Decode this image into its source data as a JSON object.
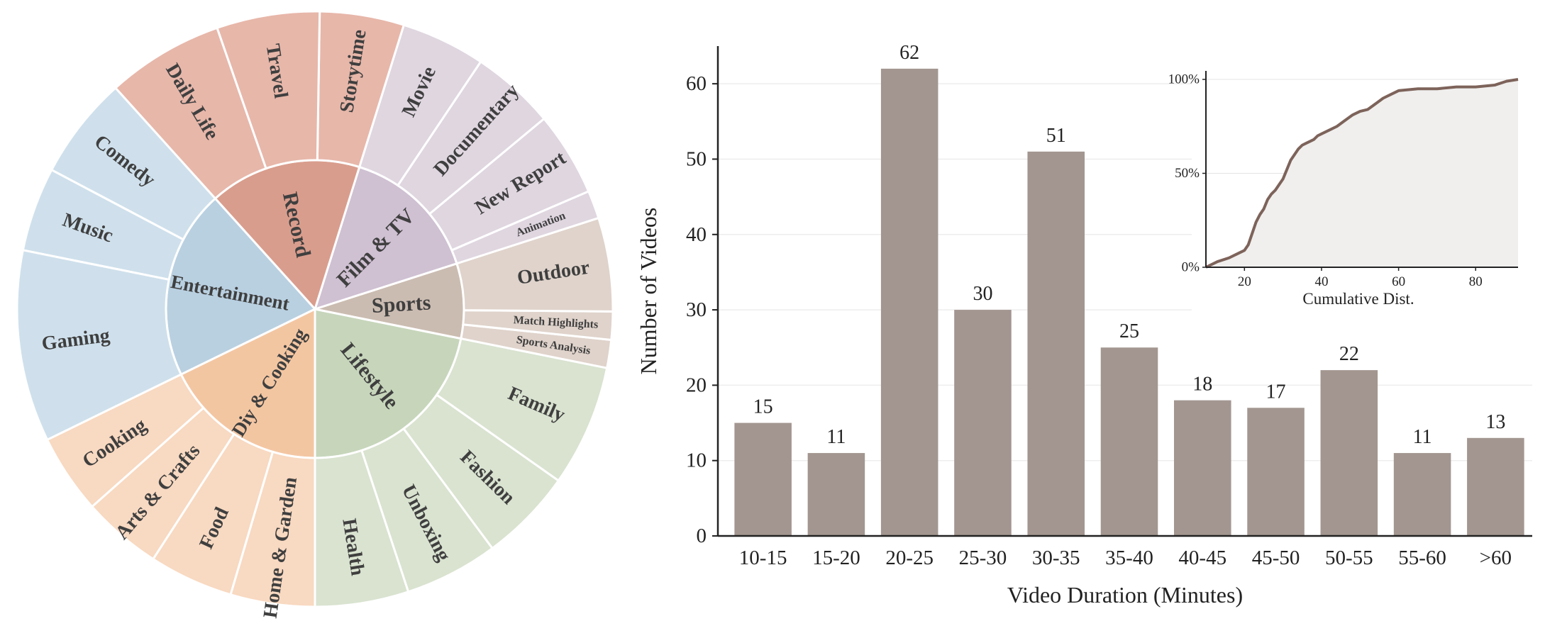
{
  "chart_data": [
    {
      "type": "sunburst",
      "inner": [
        {
          "label": "Lifestyle",
          "color": "#c7d6bb",
          "children": [
            {
              "label": "Health",
              "value": 1,
              "color": "#d9e3d0"
            },
            {
              "label": "Unboxing",
              "value": 1,
              "color": "#d9e3d0"
            },
            {
              "label": "Fashion",
              "value": 1,
              "color": "#d9e3d0"
            },
            {
              "label": "Family",
              "value": 1.3,
              "color": "#d9e3d0"
            }
          ]
        },
        {
          "label": "Sports",
          "color": "#cbbcb1",
          "children": [
            {
              "label": "Sports Analysis",
              "value": 0.3,
              "color": "#dfd3cb"
            },
            {
              "label": "Match Highlights",
              "value": 0.3,
              "color": "#dfd3cb"
            },
            {
              "label": "Outdoor",
              "value": 1,
              "color": "#dfd3cb"
            }
          ]
        },
        {
          "label": "Film & TV",
          "color": "#cfc0d2",
          "children": [
            {
              "label": "Animation",
              "value": 0.3,
              "color": "#dfd6e0"
            },
            {
              "label": "New Report",
              "value": 0.9,
              "color": "#dfd6e0"
            },
            {
              "label": "Documentary",
              "value": 0.9,
              "color": "#dfd6e0"
            },
            {
              "label": "Movie",
              "value": 0.9,
              "color": "#dfd6e0"
            }
          ]
        },
        {
          "label": "Record",
          "color": "#d99d8d",
          "children": [
            {
              "label": "Storytime",
              "value": 0.9,
              "color": "#e7b7aa"
            },
            {
              "label": "Travel",
              "value": 1.1,
              "color": "#e7b7aa"
            },
            {
              "label": "Daily Life",
              "value": 1.25,
              "color": "#e7b7aa"
            }
          ]
        },
        {
          "label": "Entertainment",
          "color": "#b9d0e1",
          "children": [
            {
              "label": "Comedy",
              "value": 1.1,
              "color": "#cfe0ec"
            },
            {
              "label": "Music",
              "value": 0.9,
              "color": "#cfe0ec"
            },
            {
              "label": "Gaming",
              "value": 2.05,
              "color": "#cfe0ec"
            }
          ]
        },
        {
          "label": "Diy & Cooking",
          "color": "#f3c6a2",
          "children": [
            {
              "label": "Cooking",
              "value": 0.85,
              "color": "#f8d9c1"
            },
            {
              "label": "Arts & Crafts",
              "value": 0.85,
              "color": "#f8d9c1"
            },
            {
              "label": "Food",
              "value": 0.9,
              "color": "#f8d9c1"
            },
            {
              "label": "Home & Garden",
              "value": 0.9,
              "color": "#f8d9c1"
            }
          ]
        }
      ]
    },
    {
      "type": "bar",
      "categories": [
        "10-15",
        "15-20",
        "20-25",
        "25-30",
        "30-35",
        "35-40",
        "40-45",
        "45-50",
        "50-55",
        "55-60",
        ">60"
      ],
      "values": [
        15,
        11,
        62,
        30,
        51,
        25,
        18,
        17,
        22,
        11,
        13
      ],
      "xlabel": "Video Duration (Minutes)",
      "ylabel": "Number of Videos",
      "ylim": [
        0,
        65
      ],
      "yticks": [
        0,
        10,
        20,
        30,
        40,
        50,
        60
      ],
      "bar_color": "#a39690",
      "grid": true
    },
    {
      "type": "area",
      "title": "Cumulative Dist.",
      "x": [
        10,
        13,
        16,
        18,
        20,
        21,
        22,
        23,
        24,
        25,
        26,
        27,
        28,
        29,
        30,
        31,
        32,
        33,
        34,
        35,
        36,
        37,
        38,
        39,
        40,
        42,
        44,
        46,
        48,
        50,
        52,
        54,
        56,
        58,
        60,
        65,
        70,
        75,
        80,
        85,
        88,
        91
      ],
      "y": [
        0,
        3,
        5,
        7,
        9,
        12,
        18,
        24,
        28,
        31,
        36,
        39,
        41,
        44,
        47,
        52,
        57,
        60,
        63,
        65,
        66,
        67,
        68,
        70,
        71,
        73,
        75,
        78,
        81,
        83,
        84,
        87,
        90,
        92,
        94,
        95,
        95,
        96,
        96,
        97,
        99,
        100
      ],
      "xticks": [
        20,
        40,
        60,
        80
      ],
      "yticks": [
        "0%",
        "50%",
        "100%"
      ],
      "xlim": [
        10,
        91
      ],
      "ylim": [
        0,
        100
      ],
      "line_color": "#7d635a",
      "fill_color": "#f0efee"
    }
  ]
}
